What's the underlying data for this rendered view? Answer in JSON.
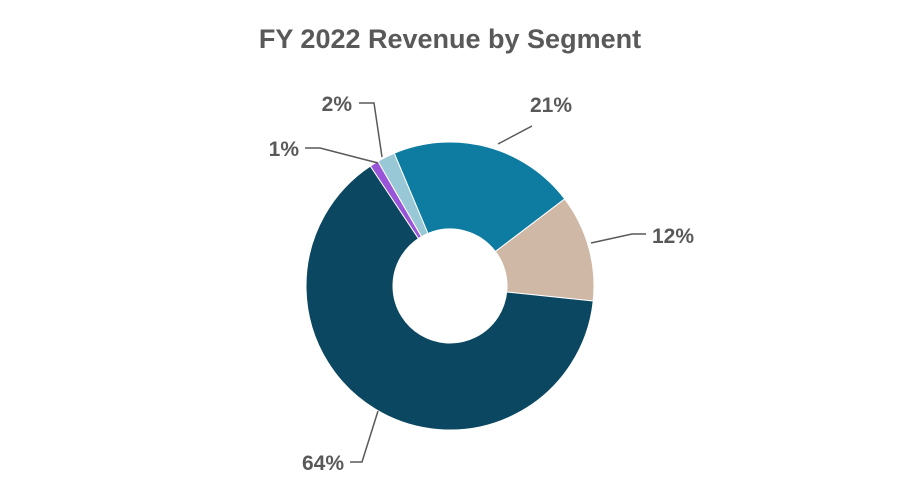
{
  "chart_data": {
    "type": "pie",
    "style": "donut",
    "title": "FY 2022 Revenue by Segment",
    "values": [
      21,
      12,
      64,
      1,
      2
    ],
    "labels": [
      "21%",
      "12%",
      "64%",
      "1%",
      "2%"
    ],
    "colors": [
      "#0e7ca1",
      "#cfb8a6",
      "#0b4760",
      "#9855d8",
      "#98c7d6"
    ],
    "legend": "none"
  }
}
